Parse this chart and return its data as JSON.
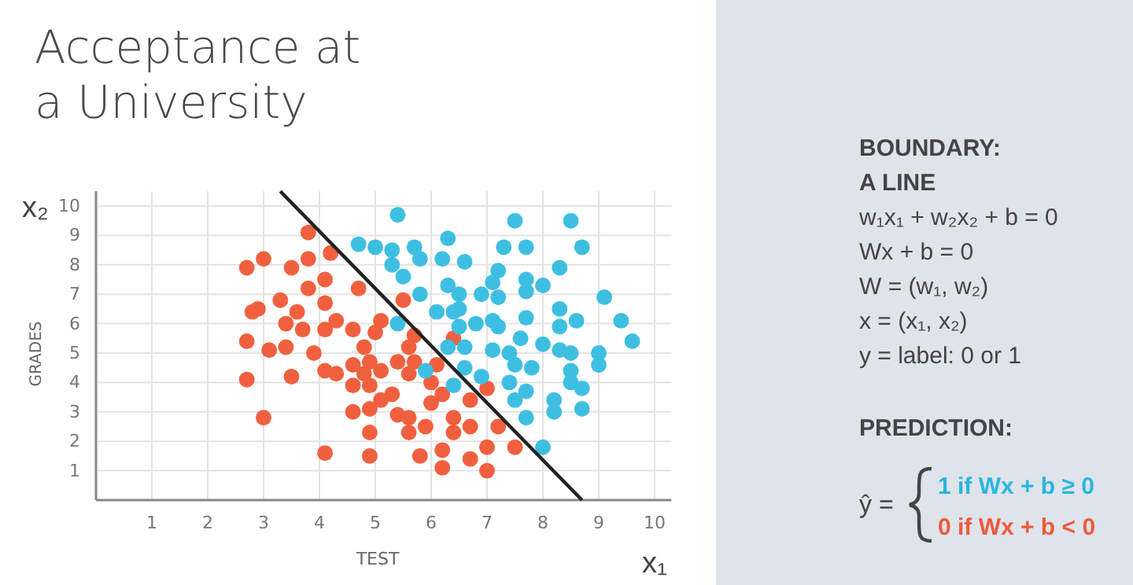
{
  "chart_data": {
    "type": "scatter",
    "title": "Acceptance at a University",
    "xlabel": "TEST",
    "ylabel": "GRADES",
    "xlim": [
      0,
      10.3
    ],
    "ylim": [
      0,
      10.5
    ],
    "xticks": [
      1,
      2,
      3,
      4,
      5,
      6,
      7,
      8,
      9,
      10
    ],
    "yticks": [
      1,
      2,
      3,
      4,
      5,
      6,
      7,
      8,
      9,
      10
    ],
    "grid": true,
    "marker": "circle",
    "series": [
      {
        "color": "#f1603e",
        "x": [
          3.8,
          4.2,
          2.7,
          3.0,
          3.5,
          3.8,
          4.1,
          3.8,
          4.7,
          3.3,
          4.1,
          2.8,
          2.9,
          3.6,
          3.4,
          3.7,
          4.1,
          4.3,
          4.6,
          5.0,
          5.1,
          5.5,
          2.7,
          3.1,
          3.4,
          3.9,
          4.8,
          4.9,
          4.6,
          5.4,
          4.1,
          4.3,
          5.1,
          4.8,
          5.6,
          2.7,
          3.5,
          4.6,
          4.9,
          5.3,
          5.1,
          4.9,
          4.6,
          5.4,
          5.6,
          3.0,
          4.9,
          5.6,
          4.1,
          4.9,
          5.7,
          6.4,
          5.7,
          6.1,
          6.0,
          6.2,
          7.0,
          6.0,
          6.7,
          6.4,
          5.9,
          6.4,
          6.7,
          7.2,
          5.8,
          6.2,
          6.2,
          6.7,
          7.0,
          7.0,
          7.5,
          5.6
        ],
        "values": [
          9.1,
          8.4,
          7.9,
          8.2,
          7.9,
          8.2,
          7.5,
          7.2,
          7.2,
          6.8,
          6.7,
          6.4,
          6.5,
          6.4,
          6.0,
          5.8,
          5.8,
          6.1,
          5.8,
          5.7,
          6.1,
          6.8,
          5.4,
          5.1,
          5.2,
          5.0,
          5.2,
          4.7,
          4.6,
          4.7,
          4.4,
          4.3,
          4.4,
          4.3,
          4.3,
          4.1,
          4.2,
          3.9,
          3.9,
          3.6,
          3.4,
          3.1,
          3.0,
          2.9,
          2.8,
          2.8,
          2.3,
          2.3,
          1.6,
          1.5,
          5.6,
          5.5,
          4.7,
          4.6,
          4.0,
          3.6,
          3.8,
          3.3,
          3.4,
          2.8,
          2.5,
          2.3,
          2.5,
          2.5,
          1.5,
          1.7,
          1.1,
          1.4,
          1.8,
          1.0,
          1.8,
          5.2
        ]
      },
      {
        "color": "#3ebfe2",
        "x": [
          5.4,
          4.7,
          5.0,
          5.3,
          5.3,
          5.5,
          5.4,
          7.5,
          8.5,
          6.3,
          5.7,
          7.3,
          7.7,
          8.7,
          5.8,
          6.2,
          6.6,
          7.2,
          8.3,
          6.3,
          7.1,
          7.7,
          8.0,
          5.8,
          6.5,
          6.9,
          7.2,
          7.7,
          9.1,
          6.1,
          6.4,
          6.5,
          7.7,
          8.3,
          8.6,
          9.4,
          6.5,
          6.8,
          7.1,
          7.2,
          8.3,
          7.6,
          8.0,
          9.6,
          6.3,
          6.6,
          7.1,
          7.4,
          8.3,
          8.5,
          9.0,
          6.6,
          7.5,
          7.8,
          8.5,
          9.0,
          5.9,
          6.9,
          6.4,
          7.4,
          8.5,
          8.7,
          7.7,
          7.5,
          8.2,
          8.7,
          8.2,
          7.7,
          8.0
        ],
        "values": [
          9.7,
          8.7,
          8.6,
          8.5,
          8.0,
          7.6,
          6.0,
          9.5,
          9.5,
          8.9,
          8.6,
          8.6,
          8.6,
          8.6,
          8.2,
          8.2,
          8.1,
          7.8,
          7.9,
          7.3,
          7.4,
          7.5,
          7.3,
          7.0,
          7.0,
          7.0,
          6.9,
          7.1,
          6.9,
          6.4,
          6.4,
          6.5,
          6.2,
          6.5,
          6.1,
          6.1,
          5.9,
          6.0,
          6.1,
          5.9,
          5.9,
          5.5,
          5.3,
          5.4,
          5.2,
          5.2,
          5.1,
          5.0,
          5.1,
          5.0,
          5.0,
          4.5,
          4.6,
          4.5,
          4.4,
          4.6,
          4.4,
          4.2,
          3.9,
          4.0,
          4.0,
          3.8,
          3.7,
          3.4,
          3.4,
          3.1,
          3.0,
          2.8,
          1.8
        ]
      },
      {
        "type": "line",
        "marker": "none",
        "color": "#222222",
        "x": [
          3.3,
          8.7
        ],
        "values": [
          10.5,
          0
        ]
      }
    ],
    "annotations": [
      "x₂",
      "x₁",
      "BOUNDARY:",
      "A LINE",
      "w₁x₁ + w₂x₂ + b = 0",
      "Wx + b = 0",
      "W = (w₁, w₂)",
      "x = (x₁, x₂)",
      "y = label: 0 or 1",
      "PREDICTION:",
      "ŷ =",
      "1 if Wx + b ≥ 0",
      "0 if Wx + b < 0"
    ]
  }
}
